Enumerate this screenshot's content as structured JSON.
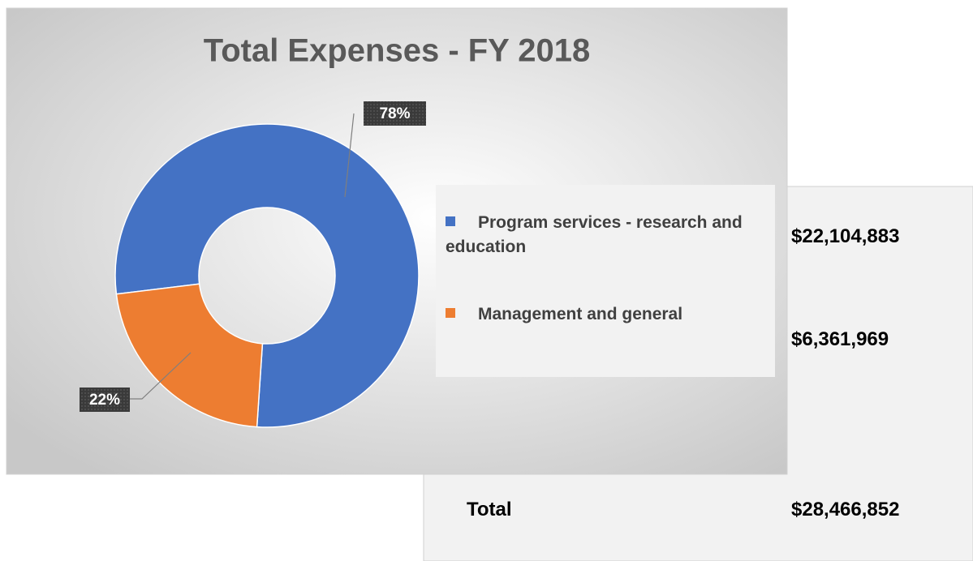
{
  "chart_data": {
    "type": "donut",
    "title": "Total Expenses - FY 2018",
    "series": [
      {
        "name": "Program services - research and education",
        "color": "#4472c4"
      },
      {
        "name": "Management and general",
        "color": "#ed7d31"
      }
    ],
    "values": [
      78,
      22
    ],
    "value_labels": [
      "78%",
      "22%"
    ],
    "legend": "right"
  },
  "amounts": {
    "rows": [
      "$22,104,883",
      "$6,361,969"
    ],
    "total_label": "Total",
    "total": "$28,466,852"
  }
}
